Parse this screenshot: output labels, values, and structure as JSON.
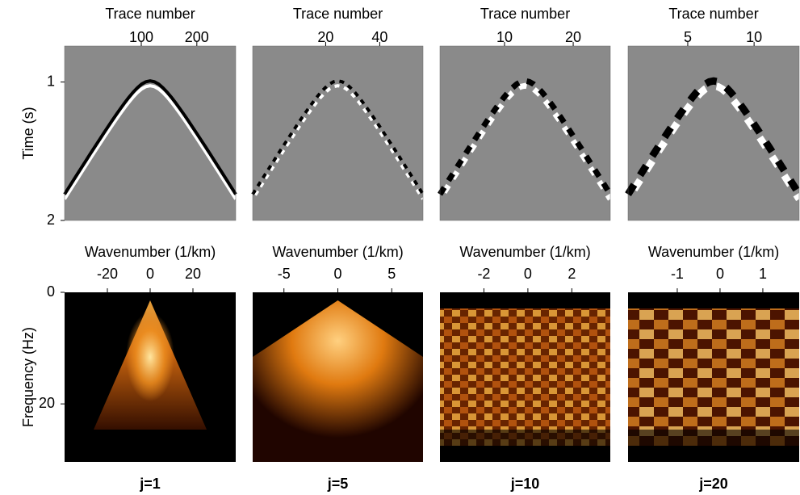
{
  "figure": {
    "panels": [
      {
        "label": "j=1",
        "top": {
          "xlabel": "Trace number",
          "xlim": [
            -38,
            270
          ],
          "xticks": [
            100,
            200
          ]
        },
        "bottom": {
          "xlabel": "Wavenumber (1/km)",
          "xlim": [
            -40,
            40
          ],
          "xticks": [
            -20,
            0,
            20
          ]
        }
      },
      {
        "label": "j=5",
        "top": {
          "xlabel": "Trace number",
          "xlim": [
            -7,
            56
          ],
          "xticks": [
            20,
            40
          ]
        },
        "bottom": {
          "xlabel": "Wavenumber (1/km)",
          "xlim": [
            -7.9,
            7.9
          ],
          "xticks": [
            -5,
            0,
            5
          ]
        }
      },
      {
        "label": "j=10",
        "top": {
          "xlabel": "Trace number",
          "xlim": [
            0.6,
            25.4
          ],
          "xticks": [
            10,
            20
          ]
        },
        "bottom": {
          "xlabel": "Wavenumber (1/km)",
          "xlim": [
            -4,
            3.75
          ],
          "xticks": [
            -2,
            0,
            2
          ]
        }
      },
      {
        "label": "j=20",
        "top": {
          "xlabel": "Trace number",
          "xlim": [
            0.5,
            13.4
          ],
          "xticks": [
            5,
            10
          ]
        },
        "bottom": {
          "xlabel": "Wavenumber (1/km)",
          "xlim": [
            -2.15,
            1.85
          ],
          "xticks": [
            -1,
            0,
            1
          ]
        }
      }
    ],
    "time_axis": {
      "label": "Time (s)",
      "ylim": [
        0.74,
        2
      ],
      "yticks": [
        1,
        2
      ]
    },
    "freq_axis": {
      "label": "Frequency (Hz)",
      "ylim": [
        0,
        30.4
      ],
      "yticks": [
        0,
        20
      ]
    }
  }
}
